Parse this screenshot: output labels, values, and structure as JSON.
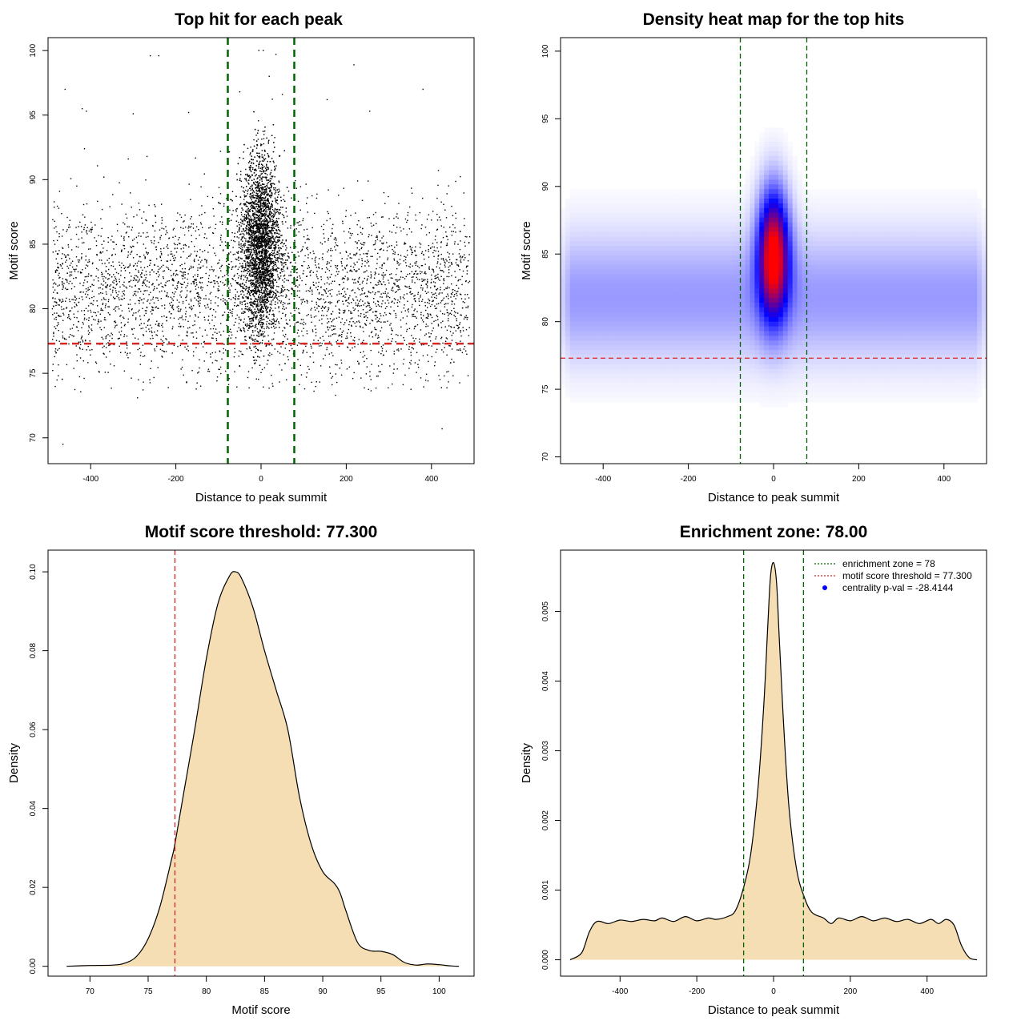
{
  "chart_data": [
    {
      "type": "scatter",
      "title": "Top hit for each peak",
      "xlabel": "Distance to peak summit",
      "ylabel": "Motif score",
      "xlim": [
        -500,
        500
      ],
      "ylim": [
        68,
        101
      ],
      "xticks": [
        "-400",
        "-200",
        "0",
        "200",
        "400"
      ],
      "yticks": [
        "70",
        "75",
        "80",
        "85",
        "90",
        "95",
        "100"
      ],
      "point_color": "#000000",
      "vlines": [
        -78,
        78
      ],
      "vline_color": "#006400",
      "hline": 77.3,
      "hline_color": "#d62728",
      "distribution": {
        "background": {
          "x_range": [
            -490,
            490
          ],
          "y_mean": 81.5,
          "y_sd": 3.2,
          "n": 3800
        },
        "central": {
          "x_mean": 0,
          "x_sd": 22,
          "y_mean": 85,
          "y_sd": 3.4,
          "n": 4200
        },
        "outliers": [
          {
            "x": -465,
            "y": 69.5
          },
          {
            "x": 425,
            "y": 70.7
          },
          {
            "x": -290,
            "y": 73.1
          },
          {
            "x": 175,
            "y": 73.3
          },
          {
            "x": -5,
            "y": 100
          },
          {
            "x": 5,
            "y": 100
          },
          {
            "x": 35,
            "y": 99.7
          },
          {
            "x": -260,
            "y": 99.6
          },
          {
            "x": -240,
            "y": 99.6
          },
          {
            "x": 218,
            "y": 98.9
          },
          {
            "x": -460,
            "y": 97
          },
          {
            "x": 380,
            "y": 97
          },
          {
            "x": -420,
            "y": 95.5
          },
          {
            "x": -410,
            "y": 95.3
          },
          {
            "x": -300,
            "y": 95.1
          },
          {
            "x": 255,
            "y": 95.3
          },
          {
            "x": -170,
            "y": 95.2
          },
          {
            "x": 155,
            "y": 96.2
          },
          {
            "x": 50,
            "y": 96.6
          },
          {
            "x": -50,
            "y": 96.8
          }
        ]
      }
    },
    {
      "type": "heatmap",
      "title": "Density heat map for the top hits",
      "xlabel": "Distance to peak summit",
      "ylabel": "Motif score",
      "xlim": [
        -500,
        500
      ],
      "ylim": [
        69.5,
        101
      ],
      "xticks": [
        "-400",
        "-200",
        "0",
        "200",
        "400"
      ],
      "yticks": [
        "70",
        "75",
        "80",
        "85",
        "90",
        "95",
        "100"
      ],
      "colors": [
        "#ffffff",
        "#0000ff",
        "#ff0000"
      ],
      "vlines": [
        -78,
        78
      ],
      "vline_color": "#006400",
      "hline": 77.3,
      "hline_color": "#d62728",
      "density": {
        "background": {
          "y_mean": 81.8,
          "y_sd": 3.3,
          "weight": 0.2
        },
        "central": {
          "x_mean": 0,
          "x_sd": 25,
          "y_mean": 85,
          "y_sd": 3.2,
          "weight": 1.0
        }
      }
    },
    {
      "type": "area",
      "title": "Motif score threshold: 77.300",
      "xlabel": "Motif score",
      "ylabel": "Density",
      "xlim": [
        66.4,
        103
      ],
      "ylim": [
        -0.0025,
        0.1055
      ],
      "xticks": [
        "70",
        "75",
        "80",
        "85",
        "90",
        "95",
        "100"
      ],
      "yticks": [
        "0.00",
        "0.02",
        "0.04",
        "0.06",
        "0.08",
        "0.10"
      ],
      "fill_color": "#f5deb3",
      "line_color": "#000000",
      "vline": 77.3,
      "vline_color": "#d62728",
      "x": [
        68,
        70,
        72,
        73,
        74,
        75,
        76,
        77,
        77.3,
        78,
        79,
        80,
        81,
        82,
        82.5,
        83,
        84,
        85,
        86,
        87,
        88,
        89,
        90,
        91,
        91.5,
        92,
        93,
        94,
        95,
        96,
        97,
        98,
        99,
        100,
        101,
        101.7
      ],
      "y": [
        0,
        0.0002,
        0.0003,
        0.0008,
        0.0025,
        0.007,
        0.015,
        0.027,
        0.031,
        0.043,
        0.06,
        0.078,
        0.092,
        0.099,
        0.1,
        0.0985,
        0.091,
        0.08,
        0.07,
        0.06,
        0.043,
        0.031,
        0.024,
        0.021,
        0.0185,
        0.014,
        0.006,
        0.004,
        0.0038,
        0.003,
        0.001,
        0.0003,
        0.0006,
        0.0004,
        0.0001,
        0
      ]
    },
    {
      "type": "area",
      "title": "Enrichment zone: 78.00",
      "xlabel": "Distance to peak summit",
      "ylabel": "Density",
      "xlim": [
        -555,
        555
      ],
      "ylim": [
        -0.000235,
        0.00588
      ],
      "xticks": [
        "-400",
        "-200",
        "0",
        "200",
        "400"
      ],
      "yticks": [
        "0.000",
        "0.001",
        "0.002",
        "0.003",
        "0.004",
        "0.005"
      ],
      "fill_color": "#f5deb3",
      "line_color": "#000000",
      "vlines": [
        -78,
        78
      ],
      "vline_color": "#006400",
      "x": [
        -530,
        -500,
        -480,
        -460,
        -430,
        -400,
        -370,
        -340,
        -310,
        -290,
        -260,
        -230,
        -200,
        -170,
        -150,
        -120,
        -100,
        -80,
        -60,
        -40,
        -25,
        -15,
        -8,
        0,
        8,
        15,
        25,
        40,
        60,
        80,
        100,
        130,
        150,
        170,
        200,
        230,
        260,
        290,
        320,
        350,
        380,
        410,
        430,
        450,
        470,
        490,
        510,
        530
      ],
      "y": [
        0,
        0.0001,
        0.0004,
        0.00055,
        0.00052,
        0.00057,
        0.00055,
        0.00058,
        0.00056,
        0.0006,
        0.00055,
        0.00062,
        0.00056,
        0.0006,
        0.00058,
        0.00062,
        0.0007,
        0.001,
        0.0015,
        0.0025,
        0.0037,
        0.0048,
        0.0055,
        0.0057,
        0.0054,
        0.0046,
        0.0035,
        0.0022,
        0.0013,
        0.0009,
        0.00068,
        0.0006,
        0.00052,
        0.0006,
        0.00056,
        0.00062,
        0.00056,
        0.0006,
        0.00055,
        0.00058,
        0.00052,
        0.00058,
        0.00052,
        0.00058,
        0.0005,
        0.0002,
        3e-05,
        0
      ],
      "legend": [
        {
          "label": "enrichment zone = 78",
          "kind": "dotted-line",
          "color": "#006400"
        },
        {
          "label": "motif score threshold = 77.300",
          "kind": "dotted-line",
          "color": "#d62728"
        },
        {
          "label": "centrality p-val = -28.4144",
          "kind": "point",
          "color": "#0000ff"
        }
      ],
      "legend_position": "top-right"
    }
  ]
}
